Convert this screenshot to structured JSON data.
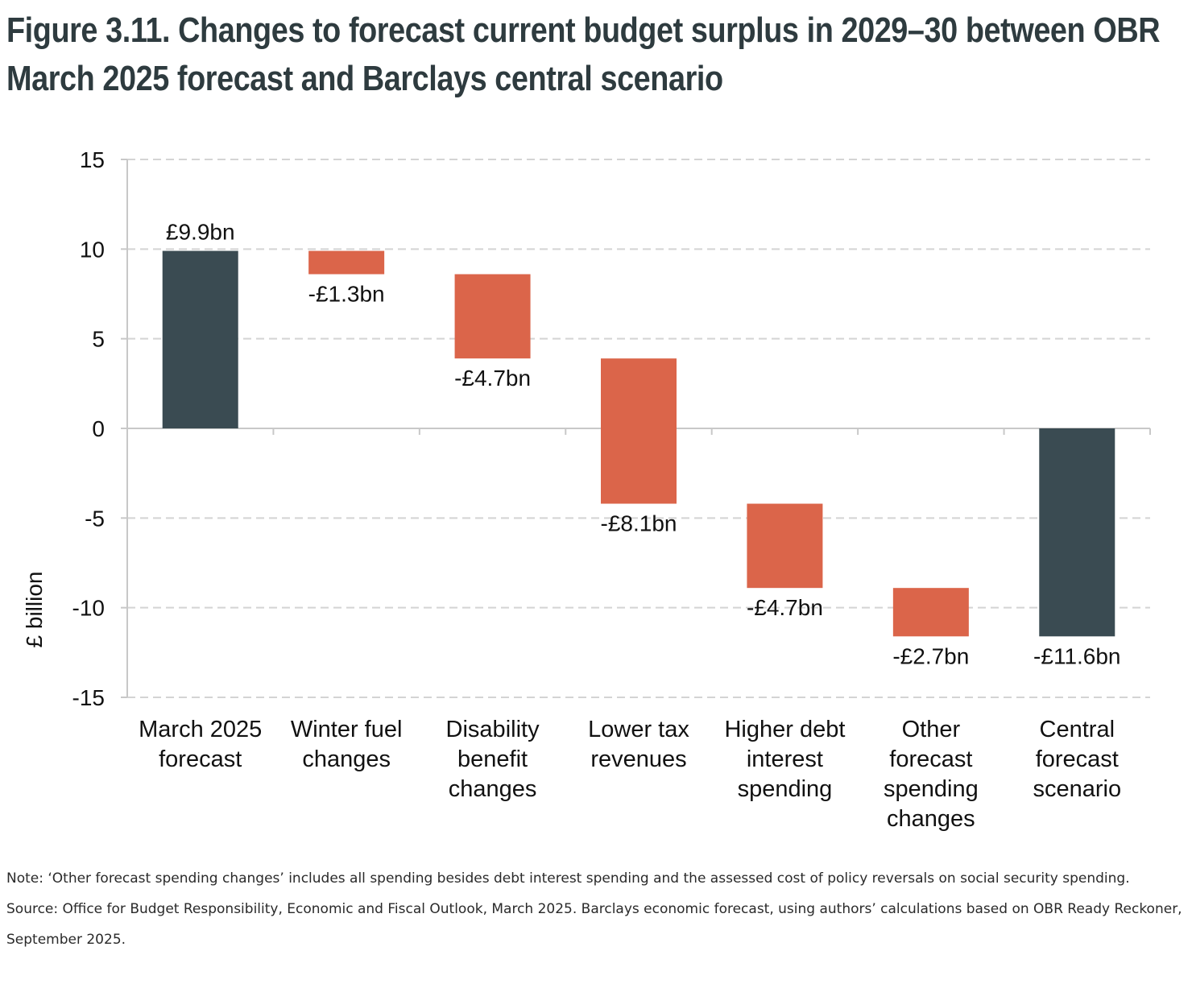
{
  "figure": {
    "title": "Figure 3.11. Changes to forecast current budget surplus in 2029–30 between OBR March 2025 forecast and Barclays central scenario",
    "note": "Note: ‘Other forecast spending changes’ includes all spending besides debt interest spending and the assessed cost of policy reversals on social security spending.",
    "source": "Source: Office for Budget Responsibility, Economic and Fiscal Outlook, March 2025. Barclays economic forecast, using authors’ calculations based on OBR Ready Reckoner, September 2025."
  },
  "chart_data": {
    "type": "bar",
    "subtype": "waterfall",
    "title": "",
    "xlabel": "",
    "ylabel": "£ billion",
    "ylim": [
      -15,
      15
    ],
    "yticks": [
      15,
      10,
      5,
      0,
      -5,
      -10,
      -15
    ],
    "ytick_labels": [
      "15",
      "10",
      "5",
      "0",
      "-5",
      "-10",
      "-15"
    ],
    "grid": true,
    "categories": [
      [
        "March 2025",
        "forecast"
      ],
      [
        "Winter fuel",
        "changes"
      ],
      [
        "Disability",
        "benefit",
        "changes"
      ],
      [
        "Lower tax",
        "revenues"
      ],
      [
        "Higher debt",
        "interest",
        "spending"
      ],
      [
        "Other",
        "forecast",
        "spending",
        "changes"
      ],
      [
        "Central",
        "forecast",
        "scenario"
      ]
    ],
    "bars": [
      {
        "kind": "total",
        "start": 0,
        "end": 9.9,
        "label": "£9.9bn"
      },
      {
        "kind": "change",
        "start": 9.9,
        "end": 8.6,
        "label": "-£1.3bn"
      },
      {
        "kind": "change",
        "start": 8.6,
        "end": 3.9,
        "label": "-£4.7bn"
      },
      {
        "kind": "change",
        "start": 3.9,
        "end": -4.2,
        "label": "-£8.1bn"
      },
      {
        "kind": "change",
        "start": -4.2,
        "end": -8.9,
        "label": "-£4.7bn"
      },
      {
        "kind": "change",
        "start": -8.9,
        "end": -11.6,
        "label": "-£2.7bn"
      },
      {
        "kind": "total",
        "start": 0,
        "end": -11.6,
        "label": "-£11.6bn"
      }
    ],
    "colors": {
      "total": "#3a4b52",
      "change": "#db654a",
      "grid": "#d4d4d4",
      "axis": "#c8c8c8",
      "text": "#111111"
    }
  }
}
